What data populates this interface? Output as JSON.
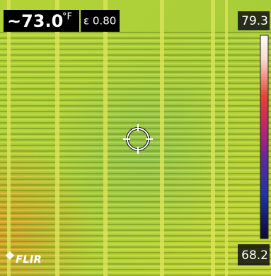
{
  "readout": {
    "temperature": "~73.0",
    "unit": "°F",
    "emissivity": "ε 0.80"
  },
  "scale": {
    "max": "79.3",
    "min": "68.2"
  },
  "logo": "FLIR"
}
